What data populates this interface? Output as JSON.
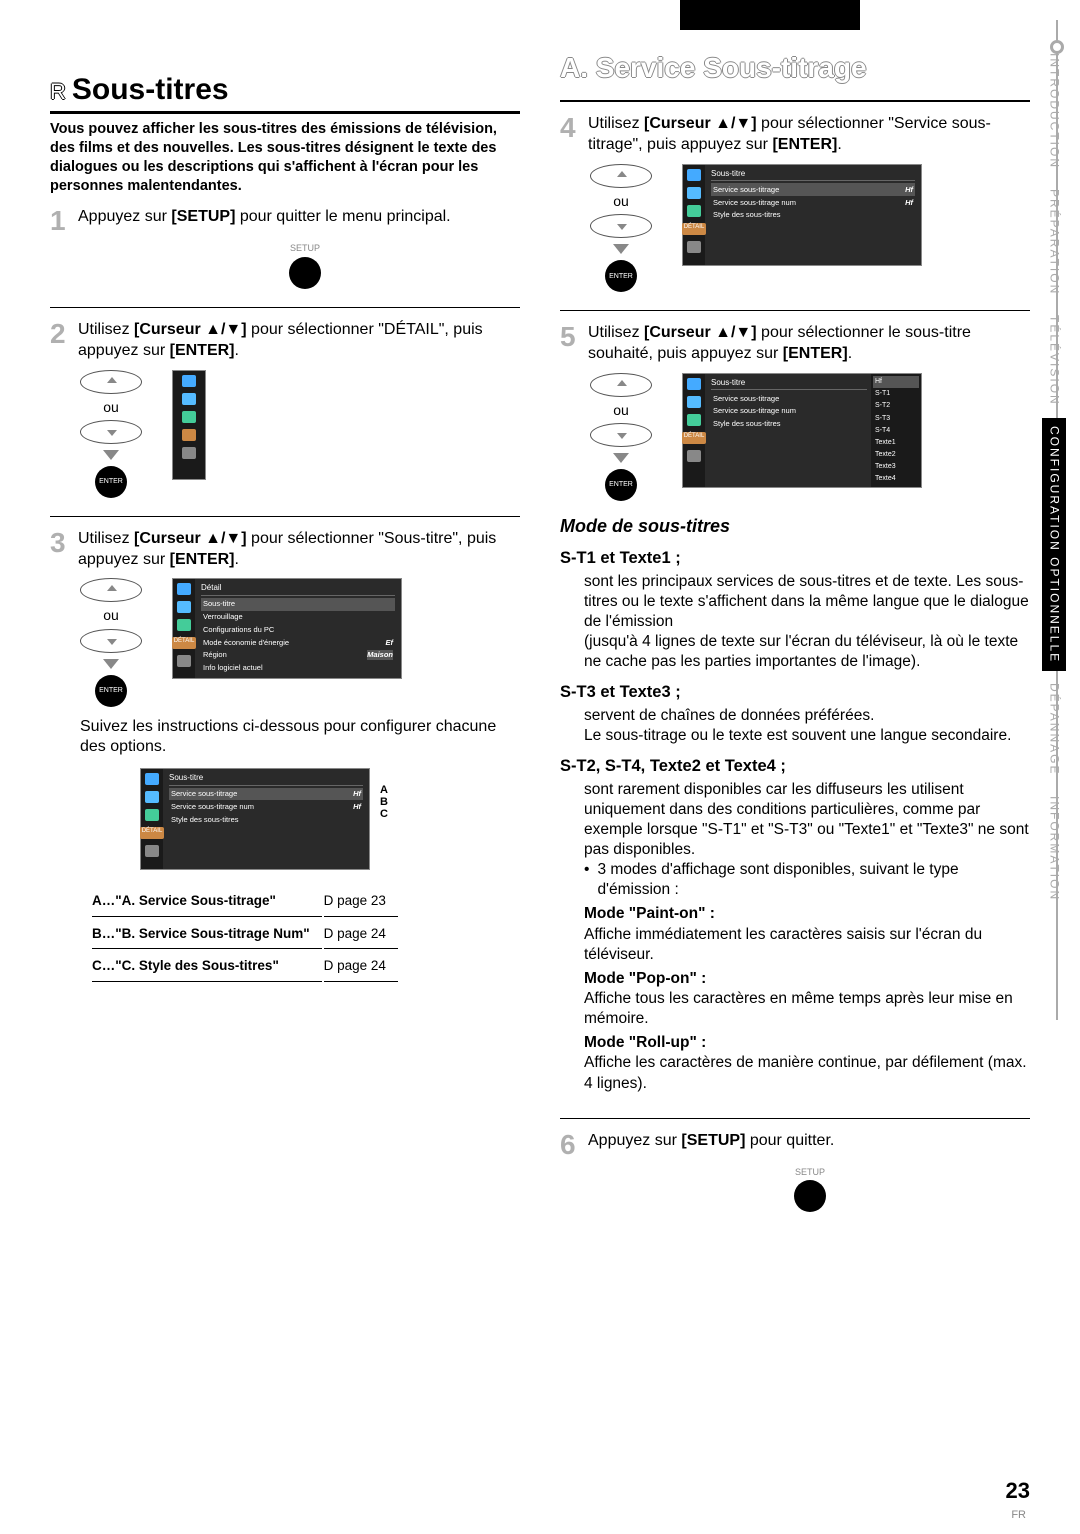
{
  "header": {
    "blackbox": true
  },
  "side_tabs": [
    {
      "label": "INTRODUCTION",
      "active": false
    },
    {
      "label": "PRÉPARATION",
      "active": false
    },
    {
      "label": "TÉLÉVISION",
      "active": false
    },
    {
      "label": "CONFIGURATION OPTIONNELLE",
      "active": true
    },
    {
      "label": "DÉPANNAGE",
      "active": false
    },
    {
      "label": "INFORMATION",
      "active": false
    }
  ],
  "left": {
    "h1_prefix": "R",
    "h1": "Sous-titres",
    "intro": "Vous pouvez afficher les sous-titres des émissions de télévision, des films et des nouvelles. Les sous-titres désignent le texte des dialogues ou les descriptions qui s'affichent à l'écran pour les personnes malentendantes.",
    "step1_num": "1",
    "step1_a": "Appuyez sur ",
    "step1_b": "[SETUP]",
    "step1_c": " pour quitter le menu principal.",
    "setup_label": "SETUP",
    "step2_num": "2",
    "step2_a": "Utilisez ",
    "step2_b": "[Curseur ▲/▼]",
    "step2_c": " pour sélectionner \"DÉTAIL\", puis appuyez sur ",
    "step2_d": "[ENTER]",
    "step2_e": ".",
    "ou": "ou",
    "enter": "ENTER",
    "step3_num": "3",
    "step3_a": "Utilisez ",
    "step3_b": "[Curseur ▲/▼]",
    "step3_c": " pour sélectionner \"Sous-titre\", puis appuyez sur ",
    "step3_d": "[ENTER]",
    "step3_e": ".",
    "panel3_title": "Détail",
    "panel3_rows": [
      {
        "l": "Sous-titre",
        "sel": true
      },
      {
        "l": "Verrouillage"
      },
      {
        "l": "Configurations du PC"
      },
      {
        "l": "Mode économie d'énergie",
        "r": "Ef"
      },
      {
        "l": "Région",
        "r": "Maison",
        "rsel": true
      },
      {
        "l": "Info logiciel actuel"
      }
    ],
    "panel3_detail": "DÉTAIL",
    "follow": "Suivez les instructions ci-dessous pour configurer chacune des options.",
    "panel_sub_title": "Sous-titre",
    "panel_sub_rows": [
      {
        "l": "Service sous-titrage",
        "r": "Hf",
        "sel": true
      },
      {
        "l": "Service sous-titrage num",
        "r": "Hf"
      },
      {
        "l": "Style des sous-titres"
      }
    ],
    "abc": "A\nB\nC",
    "refs": [
      {
        "k": "A…\"A. Service Sous-titrage\"",
        "p": "page 23"
      },
      {
        "k": "B…\"B. Service Sous-titrage Num\"",
        "p": "page 24"
      },
      {
        "k": "C…\"C. Style des Sous-titres\"",
        "p": "page 24"
      }
    ],
    "ref_arrow": "D"
  },
  "right": {
    "h1": "A. Service Sous-titrage",
    "step4_num": "4",
    "step4_a": "Utilisez ",
    "step4_b": "[Curseur ▲/▼]",
    "step4_c": " pour sélectionner \"Service sous-titrage\", puis appuyez sur ",
    "step4_d": "[ENTER]",
    "step4_e": ".",
    "panel4_title": "Sous-titre",
    "panel4_rows": [
      {
        "l": "Service sous-titrage",
        "r": "Hf",
        "sel": true
      },
      {
        "l": "Service sous-titrage num",
        "r": "Hf"
      },
      {
        "l": "Style des sous-titres"
      }
    ],
    "step5_num": "5",
    "step5_a": "Utilisez ",
    "step5_b": "[Curseur ▲/▼]",
    "step5_c": " pour sélectionner le sous-titre souhaité, puis appuyez sur ",
    "step5_d": "[ENTER]",
    "step5_e": ".",
    "panel5_title": "Sous-titre",
    "panel5_left": [
      {
        "l": "Service sous-titrage"
      },
      {
        "l": "Service sous-titrage num"
      },
      {
        "l": "Style des sous-titres"
      }
    ],
    "panel5_opts": [
      "Hf",
      "S-T1",
      "S-T2",
      "S-T3",
      "S-T4",
      "Texte1",
      "Texte2",
      "Texte3",
      "Texte4"
    ],
    "mode_h": "Mode de sous-titres",
    "st1_h": "S-T1 et Texte1 ;",
    "st1_p": "sont les principaux services de sous-titres et de texte. Les sous-titres ou le texte s'affichent dans la même langue que le dialogue de l'émission\n(jusqu'à 4 lignes de texte sur l'écran du téléviseur, là où le texte ne cache pas les parties importantes de l'image).",
    "st3_h": "S-T3 et Texte3 ;",
    "st3_p": "servent de chaînes de données préférées.\nLe sous-titrage ou le texte est souvent une langue secondaire.",
    "st2_h": "S-T2, S-T4, Texte2 et Texte4 ;",
    "st2_p": "sont rarement disponibles car les diffuseurs les utilisent uniquement dans des conditions particulières, comme par exemple lorsque \"S-T1\" et \"S-T3\" ou \"Texte1\" et \"Texte3\" ne sont pas disponibles.",
    "st2_bullet": "3 modes d'affichage sont disponibles, suivant le type d'émission :",
    "m1_h": "Mode \"Paint-on\" :",
    "m1_p": "Affiche immédiatement les caractères saisis sur l'écran du téléviseur.",
    "m2_h": "Mode \"Pop-on\" :",
    "m2_p": "Affiche tous les caractères en même temps après leur mise en mémoire.",
    "m3_h": "Mode \"Roll-up\" :",
    "m3_p": "Affiche les caractères de manière continue, par défilement (max. 4 lignes).",
    "step6_num": "6",
    "step6_a": "Appuyez sur ",
    "step6_b": "[SETUP]",
    "step6_c": " pour quitter."
  },
  "footer": {
    "page": "23",
    "fr_label": "FR"
  }
}
